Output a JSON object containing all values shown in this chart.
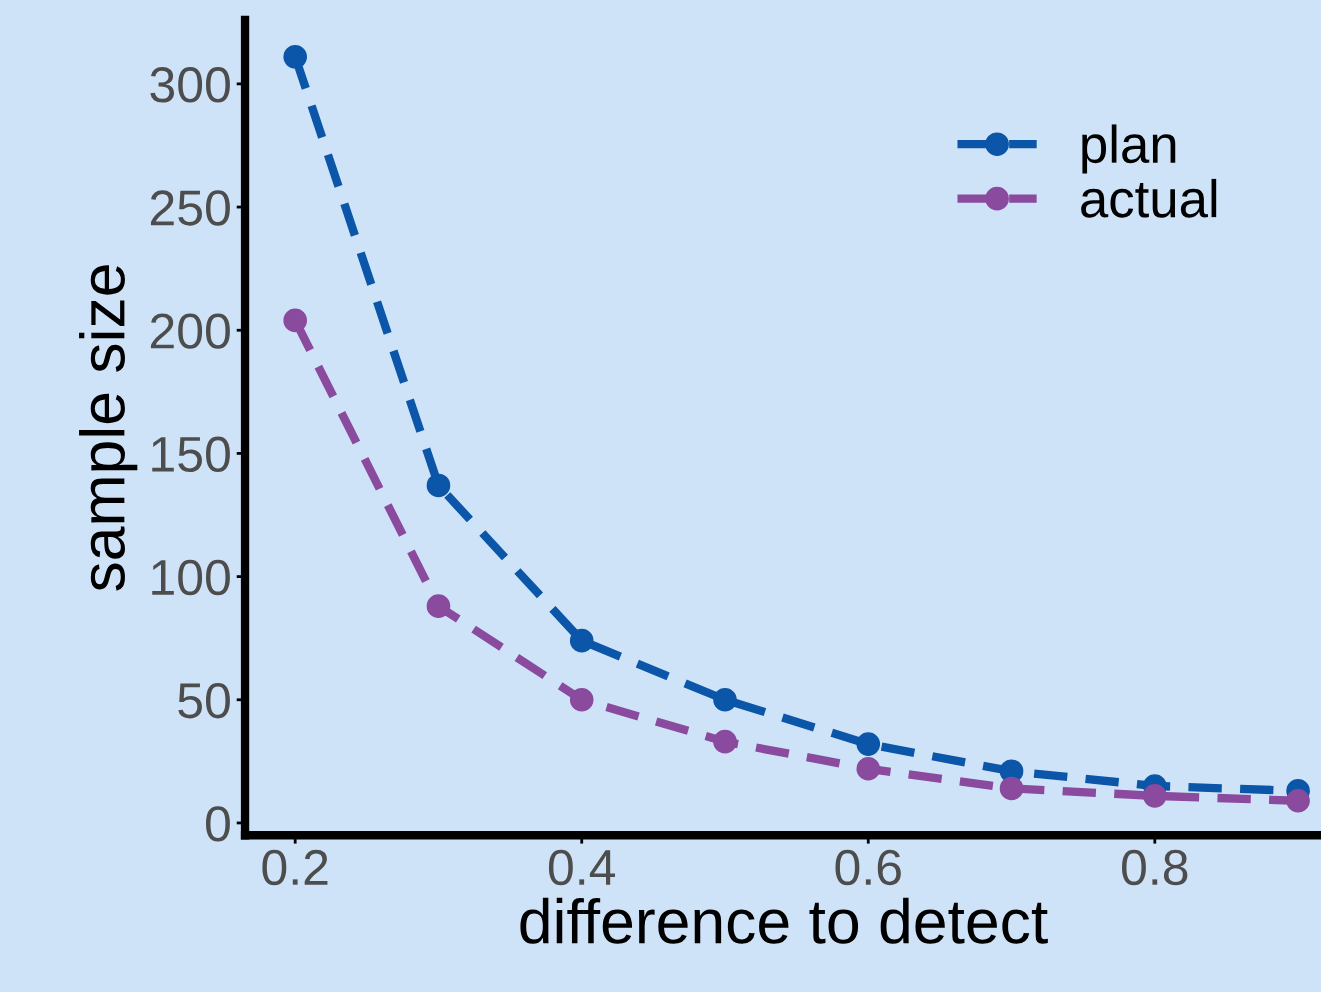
{
  "chart_data": {
    "type": "line",
    "xlabel": "difference to detect",
    "ylabel": "sample size",
    "x": [
      0.2,
      0.3,
      0.4,
      0.5,
      0.6,
      0.7,
      0.8,
      0.9
    ],
    "series": [
      {
        "name": "plan",
        "color": "#0b56a8",
        "values": [
          311,
          137,
          74,
          50,
          32,
          21,
          15,
          13
        ]
      },
      {
        "name": "actual",
        "color": "#8a4a9e",
        "values": [
          204,
          88,
          50,
          33,
          22,
          14,
          11,
          9
        ]
      }
    ],
    "xlim": [
      0.165,
      0.916
    ],
    "ylim": [
      -5,
      326
    ],
    "xticks": [
      0.2,
      0.4,
      0.6,
      0.8
    ],
    "yticks": [
      0,
      50,
      100,
      150,
      200,
      250,
      300
    ],
    "grid": false,
    "legend": "top right",
    "marker": "circle",
    "line_style": "dashed"
  }
}
